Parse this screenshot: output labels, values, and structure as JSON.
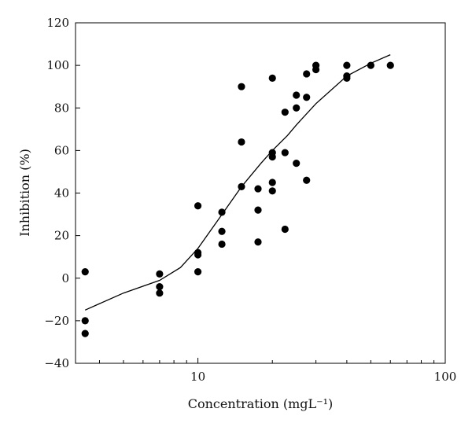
{
  "chart_data": {
    "type": "scatter",
    "xlabel": "Concentration (mgL⁻¹)",
    "ylabel": "Inhibition (%)",
    "xscale": "log",
    "xlim": [
      3.2,
      100
    ],
    "ylim": [
      -40,
      120
    ],
    "x_ticks": [
      10,
      100
    ],
    "x_tick_labels": [
      "10",
      "100"
    ],
    "y_ticks": [
      -40,
      -20,
      0,
      20,
      40,
      60,
      80,
      100,
      120
    ],
    "y_tick_labels": [
      "−40",
      "−20",
      "0",
      "20",
      "40",
      "60",
      "80",
      "100",
      "120"
    ],
    "grid": false,
    "legend": "none",
    "colors": {
      "points": "#000000",
      "curve": "#000000",
      "axes": "#000000"
    },
    "series": [
      {
        "kind": "points",
        "x": [
          3.5,
          3.5,
          3.5,
          7,
          7,
          7,
          10,
          10,
          10,
          10,
          12.5,
          12.5,
          12.5,
          15,
          15,
          15,
          17.5,
          17.5,
          17.5,
          20,
          20,
          20,
          20,
          20,
          22.5,
          22.5,
          22.5,
          25,
          25,
          25,
          27.5,
          27.5,
          27.5,
          30,
          30,
          40,
          40,
          40,
          50,
          60
        ],
        "y": [
          3,
          -20,
          -26,
          2,
          -4,
          -7,
          34,
          12,
          11,
          3,
          31,
          22,
          16,
          90,
          64,
          43,
          42,
          32,
          17,
          94,
          59,
          57,
          45,
          41,
          78,
          59,
          23,
          86,
          80,
          54,
          96,
          85,
          46,
          100,
          98,
          100,
          95,
          94,
          100,
          100
        ]
      },
      {
        "kind": "line",
        "x": [
          3.5,
          5,
          7,
          8.5,
          10,
          12,
          15,
          18,
          20,
          23,
          25,
          30,
          40,
          50,
          60
        ],
        "y": [
          -15,
          -7,
          -1,
          5,
          14,
          27,
          43,
          54,
          60,
          67,
          72,
          82,
          95,
          101,
          105
        ]
      }
    ]
  }
}
